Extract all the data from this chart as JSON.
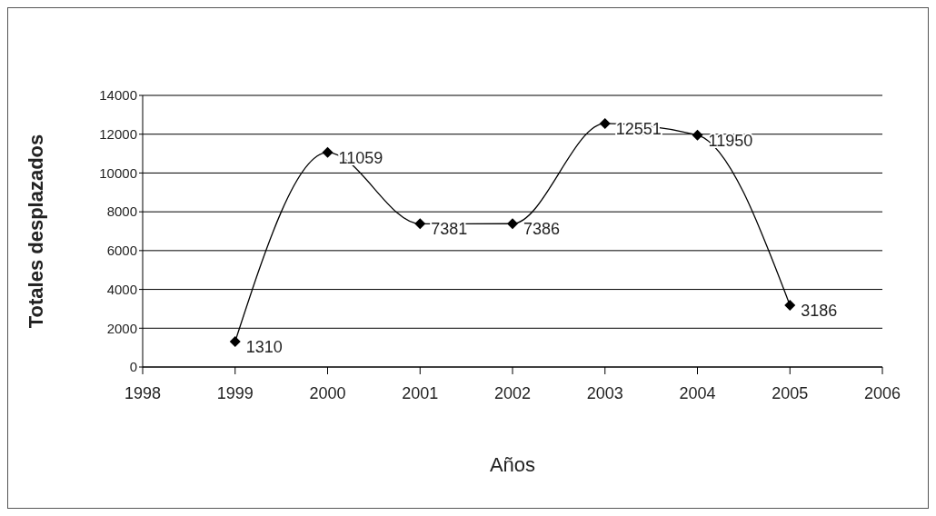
{
  "chart_data": {
    "type": "line",
    "xlabel": "Años",
    "ylabel": "Totales desplazados",
    "x": [
      1999,
      2000,
      2001,
      2002,
      2003,
      2004,
      2005
    ],
    "series": [
      {
        "color": "#000000",
        "values": [
          1310,
          11059,
          7381,
          7386,
          12551,
          11950,
          3186
        ]
      }
    ],
    "xlim": [
      1998,
      2006
    ],
    "xticks": [
      1998,
      1999,
      2000,
      2001,
      2002,
      2003,
      2004,
      2005,
      2006
    ],
    "ylim": [
      0,
      14000
    ],
    "yticks": [
      0,
      2000,
      4000,
      6000,
      8000,
      10000,
      12000,
      14000
    ],
    "grid": "y",
    "marker": "diamond",
    "line_style": "solid",
    "data_labels": true,
    "legend": false
  }
}
